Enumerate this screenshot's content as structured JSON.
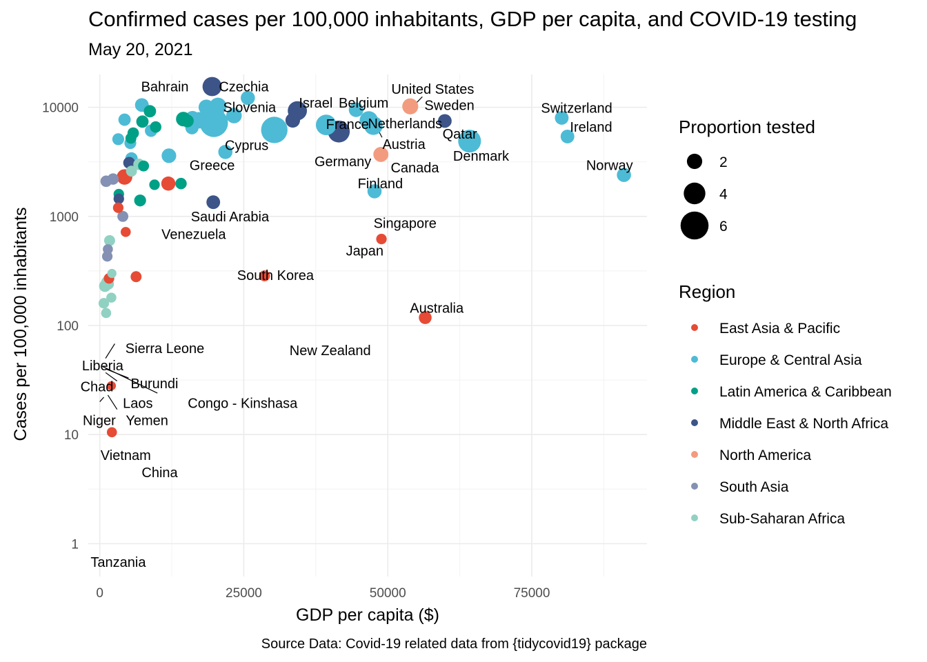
{
  "title": "Confirmed cases per 100,000 inhabitants, GDP per capita, and COVID-19 testing",
  "subtitle": "May 20, 2021",
  "caption": "Source Data: Covid-19 related data from {tidycovid19} package",
  "colors": {
    "East Asia & Pacific": "#e64b35",
    "Europe & Central Asia": "#4dbbd5",
    "Latin America & Caribbean": "#00a087",
    "Middle East & North Africa": "#3c5488",
    "North America": "#f39b7f",
    "South Asia": "#8491b4",
    "Sub-Saharan Africa": "#91d1c2"
  },
  "chart_data": {
    "type": "scatter",
    "xlabel": "GDP per capita ($)",
    "ylabel": "Cases per 100,000 inhabitants",
    "x_scale": "linear",
    "y_scale": "log10",
    "xlim": [
      -2000,
      95000
    ],
    "ylim": [
      0.5,
      20000
    ],
    "x_ticks": [
      0,
      25000,
      50000,
      75000
    ],
    "x_tick_labels": [
      "0",
      "25000",
      "50000",
      "75000"
    ],
    "y_ticks": [
      1,
      10,
      100,
      1000,
      10000
    ],
    "y_tick_labels": [
      "1",
      "10",
      "100",
      "1000",
      "10000"
    ],
    "grid": true,
    "legend_position": "right",
    "size_legend": {
      "title": "Proportion tested",
      "values": [
        2,
        4,
        6
      ]
    },
    "color_legend": {
      "title": "Region",
      "entries": [
        "East Asia & Pacific",
        "Europe & Central Asia",
        "Latin America & Caribbean",
        "Middle East & North Africa",
        "North America",
        "South Asia",
        "Sub-Saharan Africa"
      ]
    },
    "points": [
      {
        "x": 19500,
        "y": 15500,
        "region": "Middle East & North Africa",
        "tested": 3.0
      },
      {
        "x": 25700,
        "y": 12200,
        "region": "Europe & Central Asia",
        "tested": 1.9
      },
      {
        "x": 7300,
        "y": 10500,
        "region": "Europe & Central Asia",
        "tested": 1.8
      },
      {
        "x": 8700,
        "y": 9200,
        "region": "Latin America & Caribbean",
        "tested": 1.5
      },
      {
        "x": 18500,
        "y": 10000,
        "region": "Europe & Central Asia",
        "tested": 2.2
      },
      {
        "x": 20500,
        "y": 10200,
        "region": "Europe & Central Asia",
        "tested": 2.6
      },
      {
        "x": 19800,
        "y": 7200,
        "region": "Europe & Central Asia",
        "tested": 5.0
      },
      {
        "x": 23300,
        "y": 8400,
        "region": "Europe & Central Asia",
        "tested": 2.2
      },
      {
        "x": 16100,
        "y": 7900,
        "region": "Europe & Central Asia",
        "tested": 2.1
      },
      {
        "x": 14500,
        "y": 7800,
        "region": "Latin America & Caribbean",
        "tested": 2.0
      },
      {
        "x": 15200,
        "y": 7500,
        "region": "Latin America & Caribbean",
        "tested": 1.6
      },
      {
        "x": 17200,
        "y": 7600,
        "region": "Europe & Central Asia",
        "tested": 2.4
      },
      {
        "x": 16000,
        "y": 6500,
        "region": "Europe & Central Asia",
        "tested": 1.7
      },
      {
        "x": 4300,
        "y": 7700,
        "region": "Europe & Central Asia",
        "tested": 1.5
      },
      {
        "x": 7400,
        "y": 7400,
        "region": "Latin America & Caribbean",
        "tested": 1.5
      },
      {
        "x": 9700,
        "y": 6600,
        "region": "Latin America & Caribbean",
        "tested": 1.3
      },
      {
        "x": 8900,
        "y": 6100,
        "region": "Europe & Central Asia",
        "tested": 1.5
      },
      {
        "x": 5800,
        "y": 5800,
        "region": "Latin America & Caribbean",
        "tested": 1.3
      },
      {
        "x": 5400,
        "y": 5200,
        "region": "Latin America & Caribbean",
        "tested": 1.2
      },
      {
        "x": 3200,
        "y": 5100,
        "region": "Europe & Central Asia",
        "tested": 1.4
      },
      {
        "x": 5300,
        "y": 4700,
        "region": "Europe & Central Asia",
        "tested": 1.4
      },
      {
        "x": 30300,
        "y": 6200,
        "region": "Europe & Central Asia",
        "tested": 4.6
      },
      {
        "x": 33500,
        "y": 7600,
        "region": "Middle East & North Africa",
        "tested": 2.0
      },
      {
        "x": 34300,
        "y": 9300,
        "region": "Middle East & North Africa",
        "tested": 3.0
      },
      {
        "x": 39300,
        "y": 6900,
        "region": "Europe & Central Asia",
        "tested": 3.3
      },
      {
        "x": 41500,
        "y": 6000,
        "region": "Middle East & North Africa",
        "tested": 3.6
      },
      {
        "x": 44500,
        "y": 9500,
        "region": "Europe & Central Asia",
        "tested": 2.0
      },
      {
        "x": 46700,
        "y": 7600,
        "region": "Europe & Central Asia",
        "tested": 2.8
      },
      {
        "x": 47500,
        "y": 6800,
        "region": "Europe & Central Asia",
        "tested": 2.9
      },
      {
        "x": 53900,
        "y": 10200,
        "region": "North America",
        "tested": 2.3
      },
      {
        "x": 59900,
        "y": 7500,
        "region": "Middle East & North Africa",
        "tested": 1.8
      },
      {
        "x": 64200,
        "y": 4900,
        "region": "Europe & Central Asia",
        "tested": 3.8
      },
      {
        "x": 80200,
        "y": 8000,
        "region": "Europe & Central Asia",
        "tested": 1.8
      },
      {
        "x": 81200,
        "y": 5400,
        "region": "Europe & Central Asia",
        "tested": 1.8
      },
      {
        "x": 91000,
        "y": 2400,
        "region": "Europe & Central Asia",
        "tested": 1.9
      },
      {
        "x": 48800,
        "y": 3700,
        "region": "North America",
        "tested": 2.1
      },
      {
        "x": 47700,
        "y": 1700,
        "region": "Europe & Central Asia",
        "tested": 1.9
      },
      {
        "x": 21800,
        "y": 3900,
        "region": "Europe & Central Asia",
        "tested": 1.9
      },
      {
        "x": 12000,
        "y": 3600,
        "region": "Europe & Central Asia",
        "tested": 2.0
      },
      {
        "x": 5500,
        "y": 3400,
        "region": "Europe & Central Asia",
        "tested": 1.5
      },
      {
        "x": 5100,
        "y": 3100,
        "region": "Middle East & North Africa",
        "tested": 1.4
      },
      {
        "x": 7600,
        "y": 2900,
        "region": "Latin America & Caribbean",
        "tested": 1.2
      },
      {
        "x": 6800,
        "y": 3000,
        "region": "Sub-Saharan Africa",
        "tested": 1.3
      },
      {
        "x": 5500,
        "y": 2600,
        "region": "Sub-Saharan Africa",
        "tested": 1.2
      },
      {
        "x": 4300,
        "y": 2300,
        "region": "East Asia & Pacific",
        "tested": 2.2
      },
      {
        "x": 11900,
        "y": 2000,
        "region": "East Asia & Pacific",
        "tested": 1.9
      },
      {
        "x": 14100,
        "y": 2000,
        "region": "Latin America & Caribbean",
        "tested": 1.3
      },
      {
        "x": 9500,
        "y": 1950,
        "region": "Latin America & Caribbean",
        "tested": 1.1
      },
      {
        "x": 2300,
        "y": 2200,
        "region": "South Asia",
        "tested": 1.3
      },
      {
        "x": 1100,
        "y": 2100,
        "region": "South Asia",
        "tested": 1.3
      },
      {
        "x": 3300,
        "y": 1600,
        "region": "Latin America & Caribbean",
        "tested": 1.1
      },
      {
        "x": 3300,
        "y": 1450,
        "region": "Middle East & North Africa",
        "tested": 1.1
      },
      {
        "x": 7000,
        "y": 1400,
        "region": "Latin America & Caribbean",
        "tested": 1.4
      },
      {
        "x": 19700,
        "y": 1350,
        "region": "Middle East & North Africa",
        "tested": 1.8
      },
      {
        "x": 3200,
        "y": 1200,
        "region": "East Asia & Pacific",
        "tested": 1.1
      },
      {
        "x": 4000,
        "y": 1000,
        "region": "South Asia",
        "tested": 1.2
      },
      {
        "x": 4500,
        "y": 720,
        "region": "East Asia & Pacific",
        "tested": 1.0
      },
      {
        "x": 1700,
        "y": 600,
        "region": "Sub-Saharan Africa",
        "tested": 1.2
      },
      {
        "x": 1400,
        "y": 500,
        "region": "South Asia",
        "tested": 1.0
      },
      {
        "x": 1300,
        "y": 430,
        "region": "South Asia",
        "tested": 1.1
      },
      {
        "x": 48900,
        "y": 620,
        "region": "East Asia & Pacific",
        "tested": 1.1
      },
      {
        "x": 28600,
        "y": 285,
        "region": "East Asia & Pacific",
        "tested": 1.2
      },
      {
        "x": 6300,
        "y": 280,
        "region": "East Asia & Pacific",
        "tested": 1.2
      },
      {
        "x": 2100,
        "y": 300,
        "region": "Sub-Saharan Africa",
        "tested": 0.8
      },
      {
        "x": 1600,
        "y": 270,
        "region": "East Asia & Pacific",
        "tested": 1.1
      },
      {
        "x": 1200,
        "y": 250,
        "region": "Sub-Saharan Africa",
        "tested": 1.2
      },
      {
        "x": 900,
        "y": 230,
        "region": "Sub-Saharan Africa",
        "tested": 1.4
      },
      {
        "x": 1500,
        "y": 240,
        "region": "Sub-Saharan Africa",
        "tested": 1.2
      },
      {
        "x": 2000,
        "y": 180,
        "region": "Sub-Saharan Africa",
        "tested": 1.0
      },
      {
        "x": 700,
        "y": 160,
        "region": "Sub-Saharan Africa",
        "tested": 1.1
      },
      {
        "x": 1100,
        "y": 130,
        "region": "Sub-Saharan Africa",
        "tested": 1.0
      },
      {
        "x": 56500,
        "y": 118,
        "region": "East Asia & Pacific",
        "tested": 1.6
      },
      {
        "x": 2000,
        "y": 28,
        "region": "East Asia & Pacific",
        "tested": 0.8
      },
      {
        "x": 2100,
        "y": 10.5,
        "region": "East Asia & Pacific",
        "tested": 1.0
      }
    ],
    "annotations": [
      {
        "text": "Bahrain",
        "x": 11300,
        "y": 15500
      },
      {
        "text": "Czechia",
        "x": 25000,
        "y": 15500
      },
      {
        "text": "Slovenia",
        "x": 26000,
        "y": 10000
      },
      {
        "text": "Israel",
        "x": 37500,
        "y": 11000
      },
      {
        "text": "Belgium",
        "x": 45800,
        "y": 11000
      },
      {
        "text": "United States",
        "x": 57800,
        "y": 14700
      },
      {
        "text": "Sweden",
        "x": 60700,
        "y": 10500
      },
      {
        "text": "France",
        "x": 43000,
        "y": 7000
      },
      {
        "text": "Netherlands",
        "x": 53000,
        "y": 7100
      },
      {
        "text": "Qatar",
        "x": 62500,
        "y": 5700
      },
      {
        "text": "Switzerland",
        "x": 82800,
        "y": 9900
      },
      {
        "text": "Ireland",
        "x": 85300,
        "y": 6600
      },
      {
        "text": "Austria",
        "x": 52800,
        "y": 4600
      },
      {
        "text": "Cyprus",
        "x": 25500,
        "y": 4500
      },
      {
        "text": "Denmark",
        "x": 66200,
        "y": 3600
      },
      {
        "text": "Germany",
        "x": 42200,
        "y": 3200
      },
      {
        "text": "Canada",
        "x": 54700,
        "y": 2800
      },
      {
        "text": "Greece",
        "x": 19500,
        "y": 2950
      },
      {
        "text": "Norway",
        "x": 88500,
        "y": 2950
      },
      {
        "text": "Finland",
        "x": 48700,
        "y": 2000
      },
      {
        "text": "Saudi Arabia",
        "x": 22600,
        "y": 1000
      },
      {
        "text": "Singapore",
        "x": 53000,
        "y": 870
      },
      {
        "text": "Venezuela",
        "x": 16300,
        "y": 690
      },
      {
        "text": "Japan",
        "x": 46000,
        "y": 485
      },
      {
        "text": "South Korea",
        "x": 30500,
        "y": 290
      },
      {
        "text": "Australia",
        "x": 58500,
        "y": 145
      },
      {
        "text": "Sierra Leone",
        "x": 11300,
        "y": 62
      },
      {
        "text": "New Zealand",
        "x": 40000,
        "y": 59
      },
      {
        "text": "Liberia",
        "x": 500,
        "y": 43
      },
      {
        "text": "Burundi",
        "x": 9500,
        "y": 29.5
      },
      {
        "text": "Chad",
        "x": -500,
        "y": 27.5
      },
      {
        "text": "Laos",
        "x": 6600,
        "y": 19.5
      },
      {
        "text": "Congo - Kinshasa",
        "x": 24800,
        "y": 19.5
      },
      {
        "text": "Niger",
        "x": -100,
        "y": 13.5
      },
      {
        "text": "Yemen",
        "x": 8200,
        "y": 13.5
      },
      {
        "text": "Vietnam",
        "x": 4500,
        "y": 6.5
      },
      {
        "text": "China",
        "x": 10400,
        "y": 4.5
      },
      {
        "text": "Tanzania",
        "x": 3200,
        "y": 0.68
      }
    ],
    "leader_lines": [
      {
        "x1": 2600,
        "y1": 68,
        "x2": 1000,
        "y2": 50
      },
      {
        "x1": 1000,
        "y1": 40,
        "x2": 5000,
        "y2": 33
      },
      {
        "x1": 500,
        "y1": 42,
        "x2": 10000,
        "y2": 24
      },
      {
        "x1": 1000,
        "y1": 37,
        "x2": 3000,
        "y2": 31
      },
      {
        "x1": 1400,
        "y1": 23,
        "x2": 3000,
        "y2": 17
      },
      {
        "x1": 700,
        "y1": 22,
        "x2": 0,
        "y2": 20
      },
      {
        "x1": 54000,
        "y1": 9700,
        "x2": 56000,
        "y2": 12500
      },
      {
        "x1": 47500,
        "y1": 7500,
        "x2": 49000,
        "y2": 5300
      }
    ]
  }
}
